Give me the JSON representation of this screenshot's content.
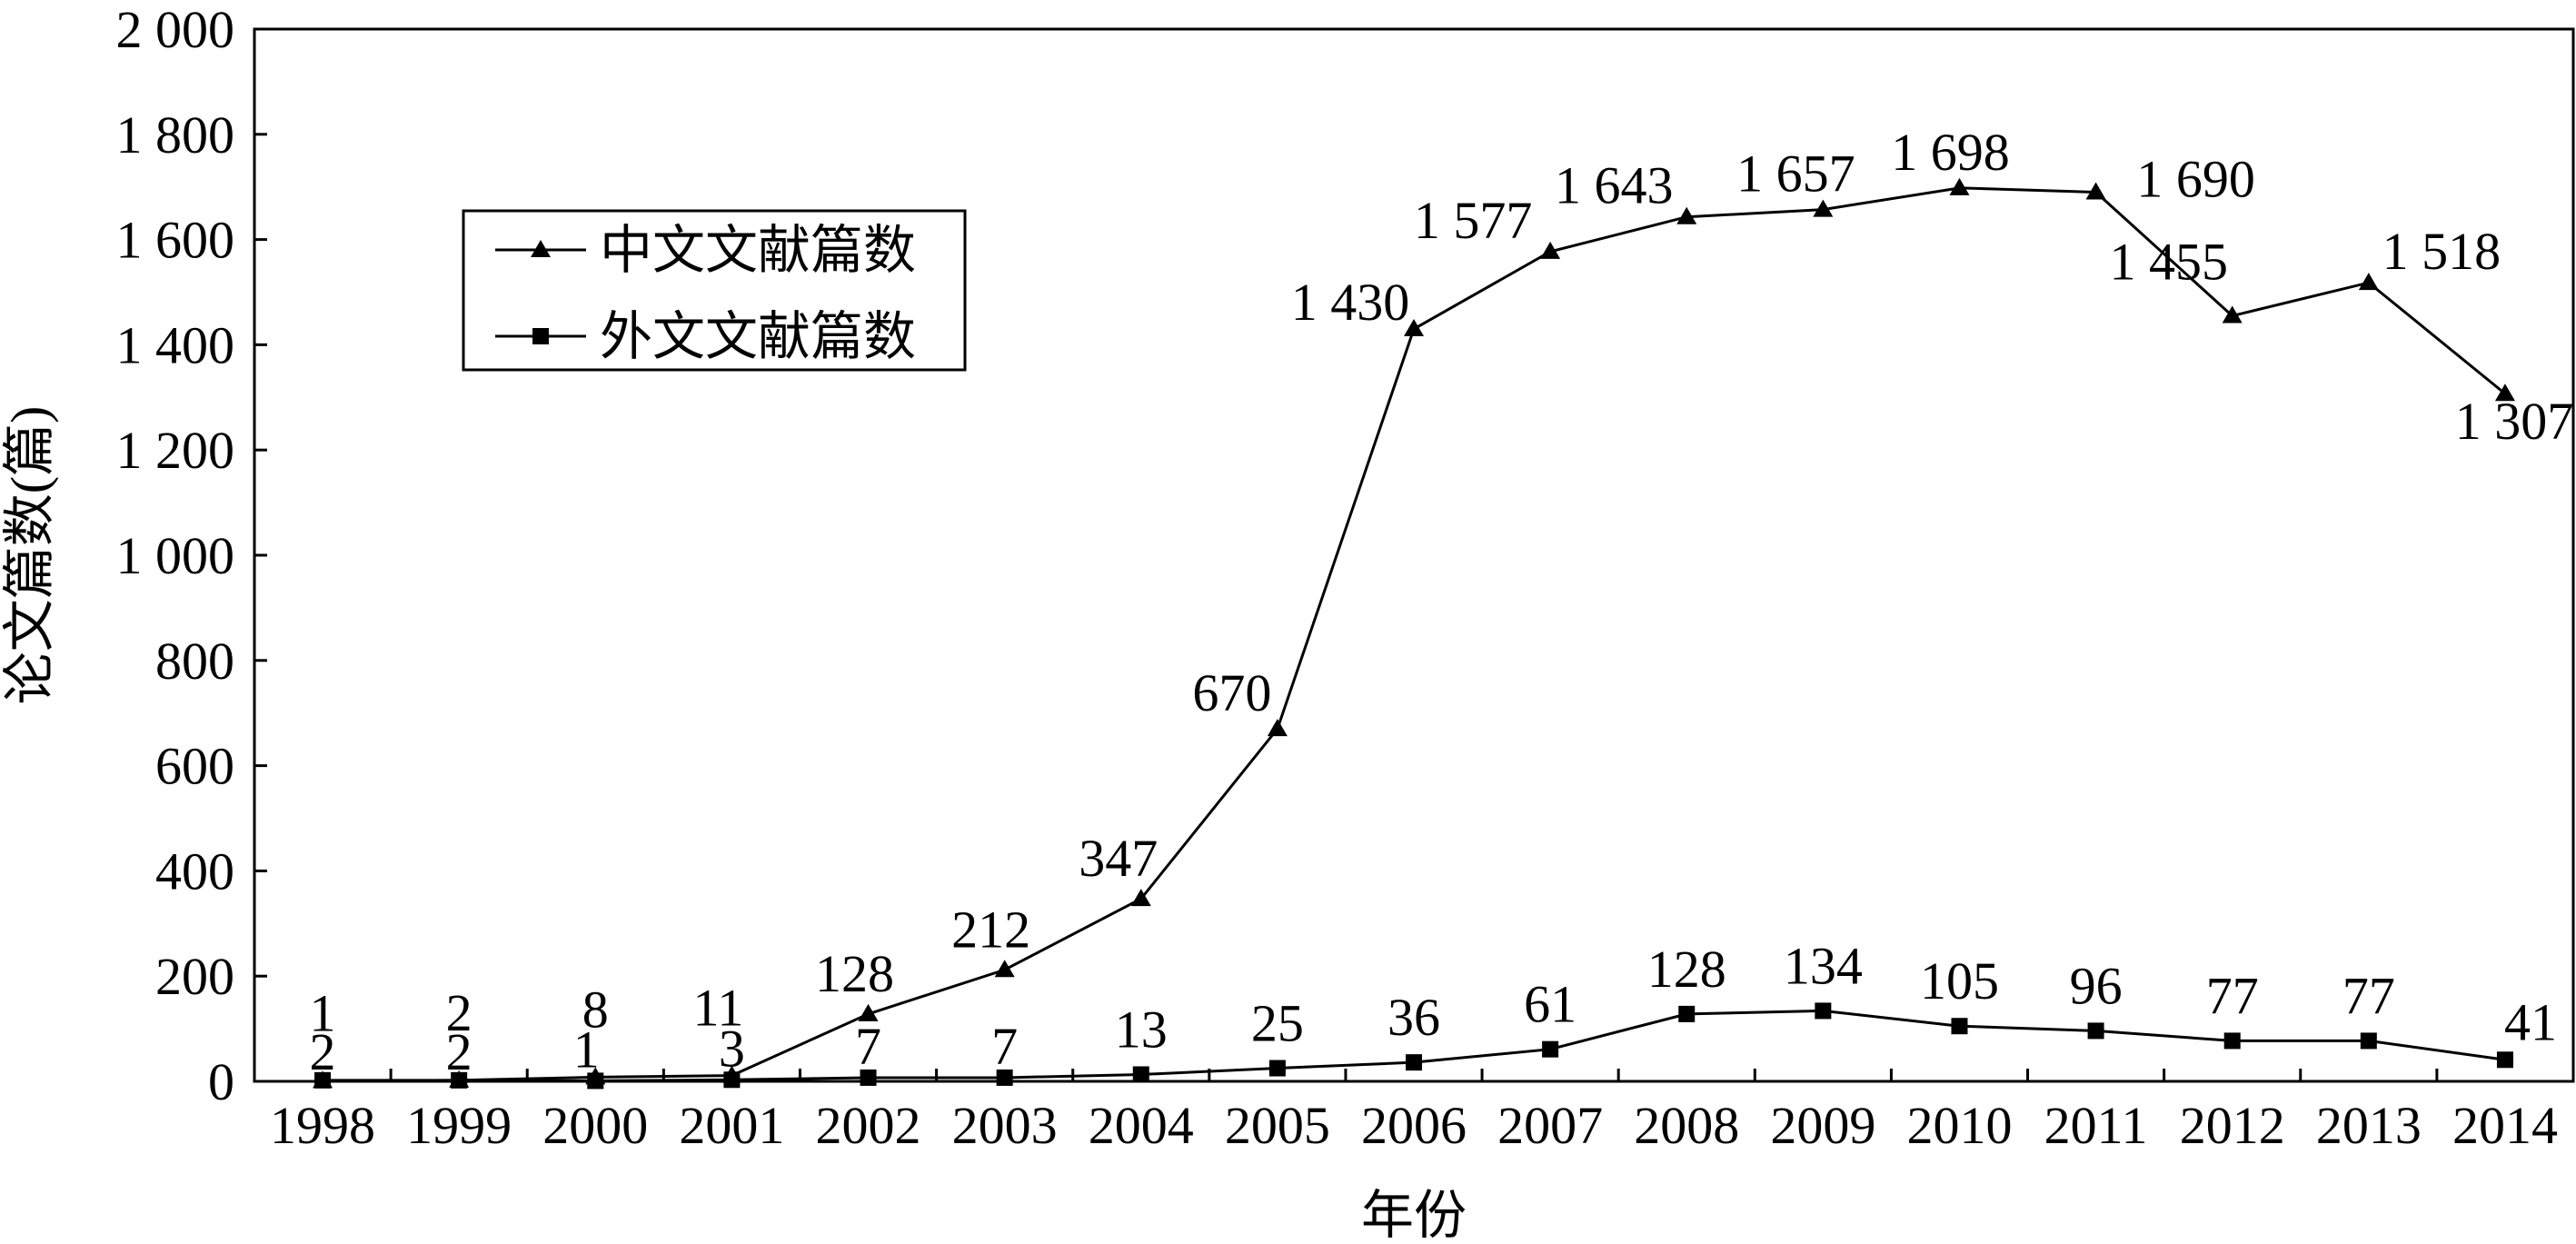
{
  "chart_data": {
    "type": "line",
    "title": "",
    "xlabel": "年份",
    "ylabel": "论文篇数(篇)",
    "ylim": [
      0,
      2000
    ],
    "grid": false,
    "legend_position": "upper-left",
    "categories": [
      "1998",
      "1999",
      "2000",
      "2001",
      "2002",
      "2003",
      "2004",
      "2005",
      "2006",
      "2007",
      "2008",
      "2009",
      "2010",
      "2011",
      "2012",
      "2013",
      "2014"
    ],
    "y_ticks": [
      0,
      200,
      400,
      600,
      800,
      1000,
      1200,
      1400,
      1600,
      1800,
      2000
    ],
    "y_tick_labels": [
      "0",
      "200",
      "400",
      "600",
      "800",
      "1 000",
      "1 200",
      "1 400",
      "1 600",
      "1 800",
      "2 000"
    ],
    "series": [
      {
        "name": "中文文献篇数",
        "marker": "triangle",
        "values": [
          1,
          2,
          8,
          11,
          128,
          212,
          347,
          670,
          1430,
          1577,
          1643,
          1657,
          1698,
          1690,
          1455,
          1518,
          1307
        ],
        "labels": [
          "1",
          "2",
          "8",
          "11",
          "128",
          "212",
          "347",
          "670",
          "1 430",
          "1 577",
          "1 643",
          "1 657",
          "1 698",
          "1 690",
          "1 455",
          "1 518",
          "1 307"
        ]
      },
      {
        "name": "外文文献篇数",
        "marker": "square",
        "values": [
          2,
          2,
          1,
          3,
          7,
          7,
          13,
          25,
          36,
          61,
          128,
          134,
          105,
          96,
          77,
          77,
          41
        ],
        "labels": [
          "2",
          "2",
          "1",
          "3",
          "7",
          "7",
          "13",
          "25",
          "36",
          "61",
          "128",
          "134",
          "105",
          "96",
          "77",
          "77",
          "41"
        ]
      }
    ]
  }
}
